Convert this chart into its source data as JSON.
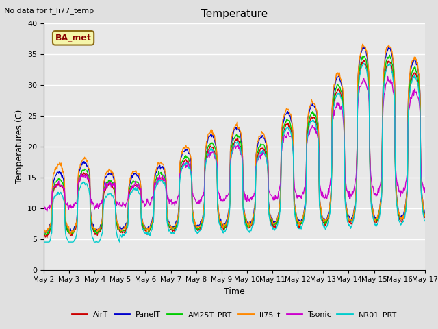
{
  "title": "Temperature",
  "ylabel": "Temperatures (C)",
  "xlabel": "Time",
  "annotation_text": "No data for f_li77_temp",
  "box_label": "BA_met",
  "ylim": [
    0,
    40
  ],
  "yticks": [
    0,
    5,
    10,
    15,
    20,
    25,
    30,
    35,
    40
  ],
  "xtick_labels": [
    "May 2",
    "May 3",
    "May 4",
    "May 5",
    "May 6",
    "May 7",
    "May 8",
    "May 9",
    "May 10",
    "May 11",
    "May 12",
    "May 13",
    "May 14",
    "May 15",
    "May 16",
    "May 17"
  ],
  "series": [
    {
      "name": "AirT",
      "color": "#cc0000",
      "lw": 1.0
    },
    {
      "name": "PanelT",
      "color": "#0000cc",
      "lw": 1.0
    },
    {
      "name": "AM25T_PRT",
      "color": "#00cc00",
      "lw": 1.0
    },
    {
      "name": "li75_t",
      "color": "#ff8800",
      "lw": 1.0
    },
    {
      "name": "Tsonic",
      "color": "#cc00cc",
      "lw": 1.0
    },
    {
      "name": "NR01_PRT",
      "color": "#00cccc",
      "lw": 1.0
    }
  ],
  "bg_color": "#e8e8e8",
  "fig_bg": "#e0e0e0"
}
